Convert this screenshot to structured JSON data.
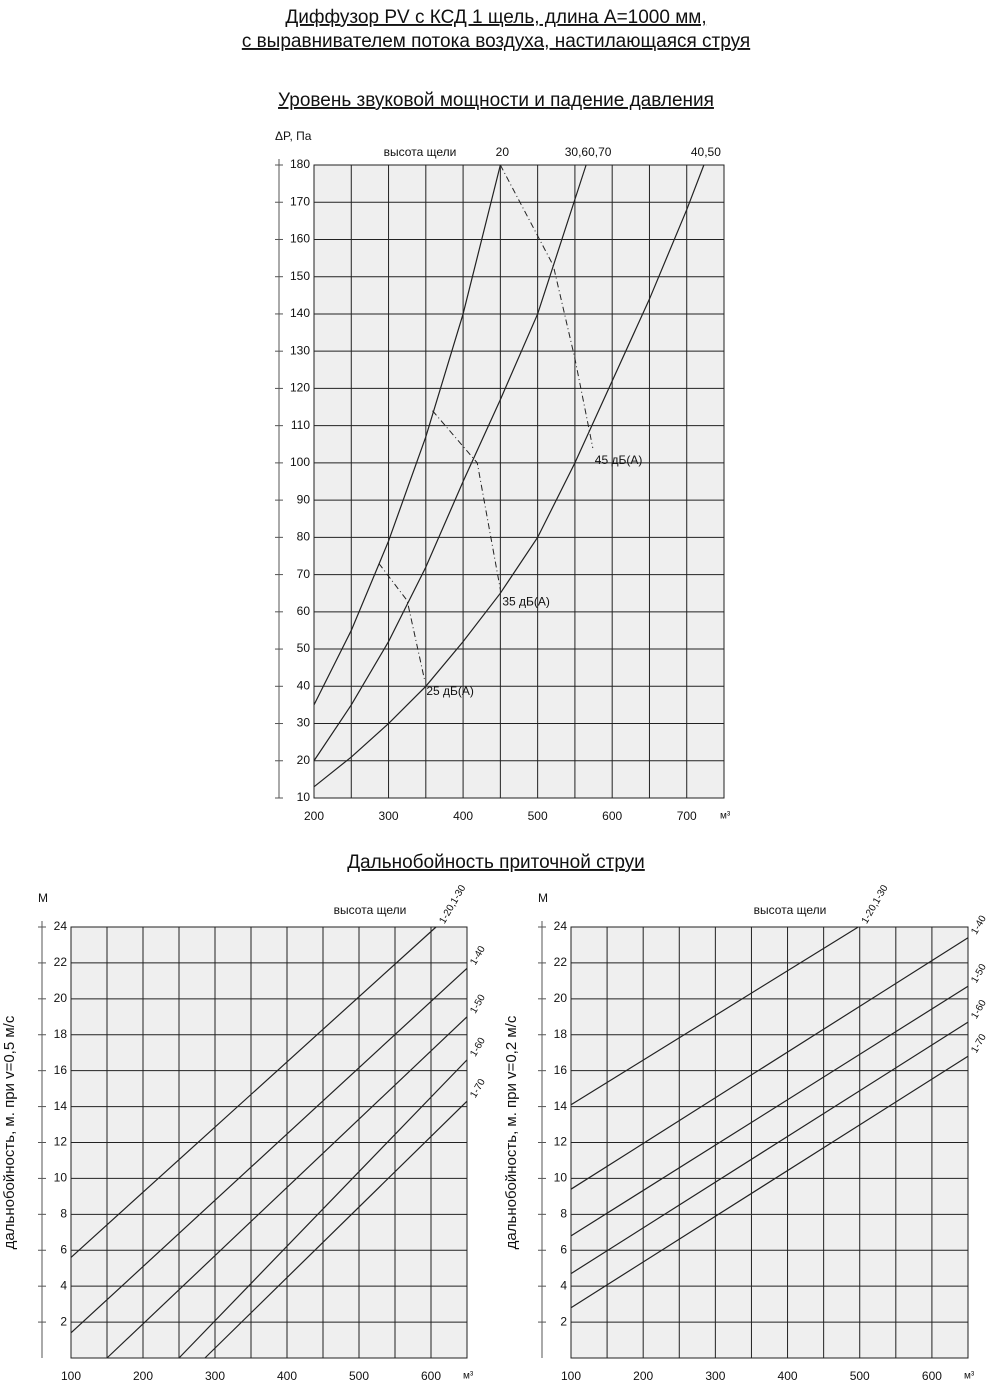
{
  "title": [
    "Диффузор PV с КСД 1 щель, длина А=1000 мм,",
    "с выравнивателем потока воздуха, настилающаяся струя"
  ],
  "chart_data": [
    {
      "type": "line",
      "title": "Уровень звуковой мощности и падение давления",
      "yunit": "ΔP, Па",
      "xunit": "м³",
      "annotation": "высота щели",
      "xlim": [
        200,
        750
      ],
      "ylim": [
        10,
        180
      ],
      "xticks": [
        200,
        300,
        400,
        500,
        600,
        700
      ],
      "x_minor_grid": [
        250,
        350,
        450,
        550,
        650
      ],
      "yticks": [
        10,
        20,
        30,
        40,
        50,
        60,
        70,
        80,
        90,
        100,
        110,
        120,
        130,
        140,
        150,
        160,
        170,
        180
      ],
      "grid": true,
      "series": [
        {
          "name": "20",
          "color": "#222",
          "label_at": "top",
          "x": [
            200,
            250,
            300,
            350,
            400,
            450
          ],
          "values": [
            35,
            55,
            79,
            107,
            140,
            180
          ]
        },
        {
          "name": "30,60,70",
          "color": "#222",
          "label_at": "top",
          "x": [
            200,
            250,
            300,
            350,
            400,
            450,
            500,
            565
          ],
          "values": [
            20,
            35,
            52,
            72,
            95,
            117,
            140,
            180
          ]
        },
        {
          "name": "40,50",
          "color": "#222",
          "label_at": "top",
          "x": [
            200,
            250,
            300,
            350,
            400,
            450,
            500,
            550,
            600,
            650,
            700,
            723
          ],
          "values": [
            13,
            21,
            30,
            40,
            52,
            65,
            80,
            100,
            122,
            144,
            168,
            180
          ]
        },
        {
          "name": "25 дБ(А)",
          "color": "#222",
          "dash": "dashdot",
          "label_at": "end",
          "x": [
            287,
            325,
            348
          ],
          "values": [
            73,
            63,
            42
          ]
        },
        {
          "name": "35 дБ(А)",
          "color": "#222",
          "dash": "dashdot",
          "label_at": "end",
          "x": [
            359,
            419,
            450
          ],
          "values": [
            114,
            100,
            66
          ]
        },
        {
          "name": "45 дБ(А)",
          "color": "#222",
          "dash": "dashdot",
          "label_at": "end",
          "x": [
            450,
            521,
            550,
            574
          ],
          "values": [
            180,
            153,
            128,
            104
          ]
        }
      ]
    },
    {
      "type": "line",
      "title": "Дальнобойность приточной струи",
      "ylabel": "дальнобойность, м. при v=0,5 м/с",
      "yunit": "М",
      "xunit": "м³",
      "annotation": "высота щели",
      "xlim": [
        100,
        650
      ],
      "ylim": [
        0,
        24
      ],
      "xticks": [
        100,
        200,
        300,
        400,
        500,
        600
      ],
      "x_minor_grid": [
        150,
        250,
        350,
        450,
        550
      ],
      "yticks": [
        2,
        4,
        6,
        8,
        10,
        12,
        14,
        16,
        18,
        20,
        22,
        24
      ],
      "grid": true,
      "series": [
        {
          "name": "1-20,1-30",
          "color": "#222",
          "label_at": "rot",
          "x": [
            100,
            607
          ],
          "values": [
            5.6,
            24
          ]
        },
        {
          "name": "1-40",
          "color": "#222",
          "label_at": "rot",
          "x": [
            100,
            650
          ],
          "values": [
            1.4,
            21.7
          ]
        },
        {
          "name": "1-50",
          "color": "#222",
          "label_at": "rot",
          "x": [
            150,
            650
          ],
          "values": [
            0,
            19
          ]
        },
        {
          "name": "1-60",
          "color": "#222",
          "label_at": "rot",
          "x": [
            250,
            650
          ],
          "values": [
            0,
            16.6
          ]
        },
        {
          "name": "1-70",
          "color": "#222",
          "label_at": "rot",
          "x": [
            286,
            650
          ],
          "values": [
            0,
            14.3
          ]
        }
      ]
    },
    {
      "type": "line",
      "ylabel": "дальнобойность, м. при v=0,2 м/с",
      "yunit": "М",
      "xunit": "м³",
      "annotation": "высота щели",
      "xlim": [
        100,
        650
      ],
      "ylim": [
        0,
        24
      ],
      "xticks": [
        100,
        200,
        300,
        400,
        500,
        600
      ],
      "x_minor_grid": [
        150,
        250,
        350,
        450,
        550
      ],
      "yticks": [
        2,
        4,
        6,
        8,
        10,
        12,
        14,
        16,
        18,
        20,
        22,
        24
      ],
      "grid": true,
      "series": [
        {
          "name": "1-20,1-30",
          "color": "#222",
          "label_at": "rot",
          "x": [
            100,
            498
          ],
          "values": [
            14.1,
            24
          ]
        },
        {
          "name": "1-40",
          "color": "#222",
          "label_at": "rot",
          "x": [
            100,
            650
          ],
          "values": [
            9.4,
            23.4
          ]
        },
        {
          "name": "1-50",
          "color": "#222",
          "label_at": "rot",
          "x": [
            100,
            650
          ],
          "values": [
            6.8,
            20.7
          ]
        },
        {
          "name": "1-60",
          "color": "#222",
          "label_at": "rot",
          "x": [
            100,
            650
          ],
          "values": [
            4.7,
            18.7
          ]
        },
        {
          "name": "1-70",
          "color": "#222",
          "label_at": "rot",
          "x": [
            100,
            650
          ],
          "values": [
            2.8,
            16.8
          ]
        }
      ]
    }
  ]
}
